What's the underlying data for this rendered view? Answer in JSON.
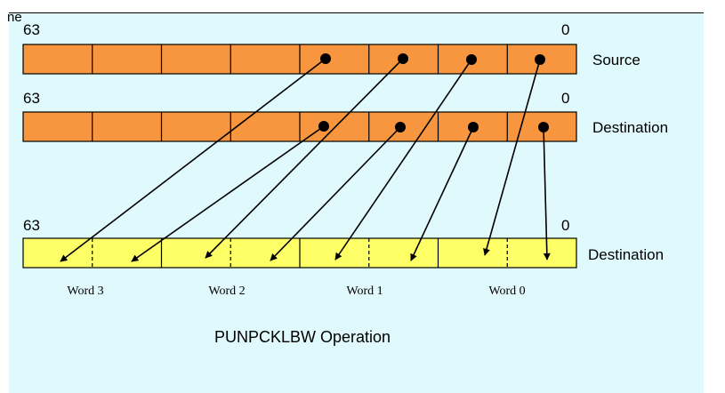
{
  "header_stub": "ne",
  "rows": [
    {
      "id": "source",
      "label": "Source",
      "high_bit": "63",
      "low_bit": "0",
      "color": "#f7963e"
    },
    {
      "id": "destination_in",
      "label": "Destination",
      "high_bit": "63",
      "low_bit": "0",
      "color": "#f7963e"
    },
    {
      "id": "destination_out",
      "label": "Destination",
      "high_bit": "63",
      "low_bit": "0",
      "color": "#fefe66"
    }
  ],
  "words": [
    "Word 3",
    "Word 2",
    "Word 1",
    "Word 0"
  ],
  "caption": "PUNPCKLBW Operation",
  "colors": {
    "background": "#dff9fd",
    "orange": "#f7963e",
    "yellow": "#fefe66",
    "line": "#000000"
  }
}
